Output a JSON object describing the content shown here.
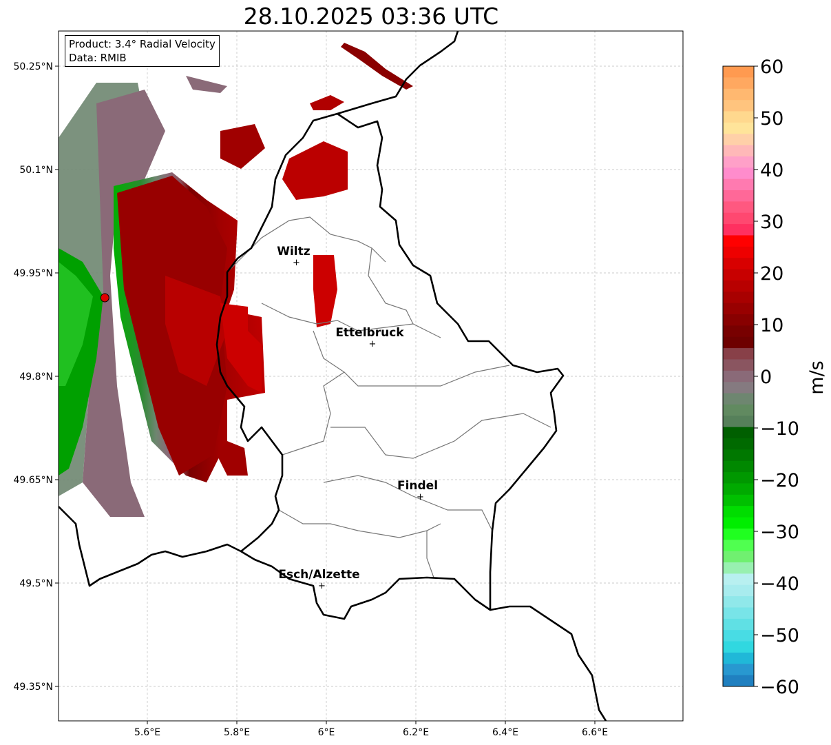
{
  "title": "28.10.2025 03:36 UTC",
  "legend": {
    "product": "Product: 3.4° Radial Velocity",
    "data": "Data: RMIB"
  },
  "axes": {
    "lon_ticks": [
      "5.6°E",
      "5.8°E",
      "6°E",
      "6.2°E",
      "6.4°E",
      "6.6°E"
    ],
    "lon_values": [
      5.6,
      5.8,
      6.0,
      6.2,
      6.4,
      6.6
    ],
    "lat_ticks": [
      "50.25°N",
      "50.1°N",
      "49.95°N",
      "49.8°N",
      "49.65°N",
      "49.5°N",
      "49.35°N"
    ],
    "lat_values": [
      50.25,
      50.1,
      49.95,
      49.8,
      49.65,
      49.5,
      49.35
    ]
  },
  "cities": [
    {
      "name": "Wiltz",
      "lon": 5.933,
      "lat": 49.966
    },
    {
      "name": "Ettelbruck",
      "lon": 6.103,
      "lat": 49.848
    },
    {
      "name": "Findel",
      "lon": 6.21,
      "lat": 49.626
    },
    {
      "name": "Esch/Alzette",
      "lon": 5.99,
      "lat": 49.497
    }
  ],
  "radar_site": {
    "lon": 5.505,
    "lat": 49.914
  },
  "colorbar": {
    "label": "m/s",
    "min": -60,
    "max": 60,
    "ticks": [
      "60",
      "50",
      "40",
      "30",
      "20",
      "10",
      "0",
      "−10",
      "−20",
      "−30",
      "−40",
      "−50",
      "−60"
    ],
    "colors_top_to_bottom": [
      "#ff9a50",
      "#ffa860",
      "#ffb870",
      "#ffc47e",
      "#ffd88e",
      "#ffe49a",
      "#ffd0a8",
      "#ffb8b8",
      "#ffa0c8",
      "#ff8ccc",
      "#ff7ab0",
      "#ff6898",
      "#ff5880",
      "#ff4870",
      "#ff3060",
      "#ff0000",
      "#ee0000",
      "#d80000",
      "#c80000",
      "#b80000",
      "#a80000",
      "#980000",
      "#880000",
      "#780000",
      "#6e0000",
      "#884048",
      "#8a5560",
      "#8a6a78",
      "#857a80",
      "#6e8670",
      "#618a60",
      "#56805a",
      "#005f00",
      "#006a00",
      "#007800",
      "#008800",
      "#009800",
      "#00aa00",
      "#00c000",
      "#00dd00",
      "#00ee00",
      "#20ff20",
      "#50ff50",
      "#70f070",
      "#98f0b0",
      "#b8f0f0",
      "#a8ecee",
      "#90e8ea",
      "#78e4e8",
      "#60e0e4",
      "#48dce4",
      "#30d8e0",
      "#20b8d8",
      "#2898d0",
      "#2080c0"
    ]
  }
}
